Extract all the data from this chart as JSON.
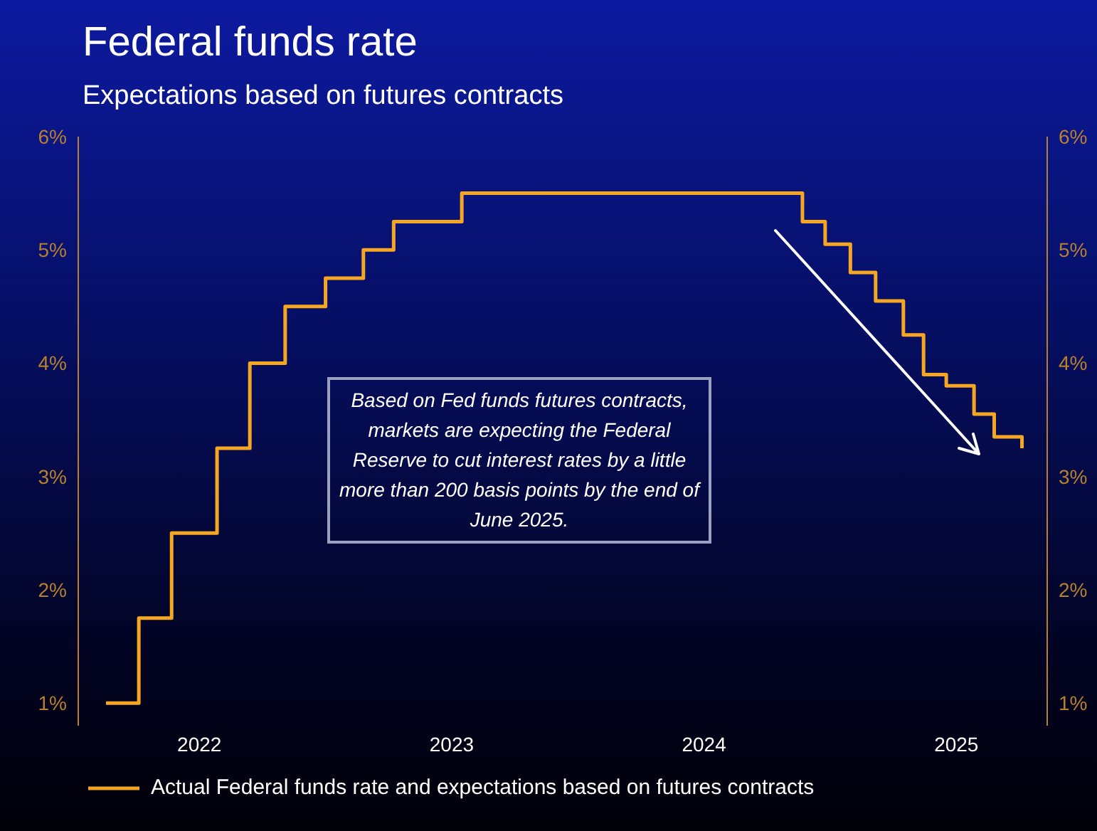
{
  "chart_data": {
    "type": "step",
    "title": "Federal funds rate",
    "subtitle": "Expectations based on futures contracts",
    "annotations": [
      "Based on Fed funds futures contracts, markets are expecting the Federal Reserve to cut interest rates by a little more than 200 basis points by the end of June 2025."
    ],
    "x": [
      2021.63,
      2021.76,
      2021.89,
      2022.07,
      2022.2,
      2022.34,
      2022.5,
      2022.65,
      2022.77,
      2023.04,
      2024.39,
      2024.48,
      2024.58,
      2024.68,
      2024.79,
      2024.87,
      2024.96,
      2025.07,
      2025.15,
      2025.26
    ],
    "series": [
      {
        "name": "Actual Federal funds rate and expectations based on futures contracts",
        "color": "#f5a623",
        "values": [
          1.0,
          1.75,
          2.5,
          3.25,
          4.0,
          4.5,
          4.75,
          5.0,
          5.25,
          5.5,
          5.25,
          5.05,
          4.8,
          4.55,
          4.25,
          3.9,
          3.8,
          3.55,
          3.35,
          3.25
        ]
      }
    ],
    "xlim": [
      2021.52,
      2025.36
    ],
    "xticks": [
      2022,
      2023,
      2024,
      2025
    ],
    "ylim": [
      0.8,
      6
    ],
    "yticks": [
      {
        "value": 1,
        "label": "1%"
      },
      {
        "value": 2,
        "label": "2%"
      },
      {
        "value": 3,
        "label": "3%"
      },
      {
        "value": 4,
        "label": "4%"
      },
      {
        "value": 5,
        "label": "5%"
      },
      {
        "value": 6,
        "label": "6%"
      }
    ],
    "y2lim": [
      0.8,
      6
    ],
    "y2ticks": [
      {
        "value": 1,
        "label": "1%"
      },
      {
        "value": 2,
        "label": "2%"
      },
      {
        "value": 3,
        "label": "3%"
      },
      {
        "value": 4,
        "label": "4%"
      },
      {
        "value": 5,
        "label": "5%"
      },
      {
        "value": 6,
        "label": "6%"
      }
    ],
    "grid": false,
    "legend": "bottom"
  }
}
